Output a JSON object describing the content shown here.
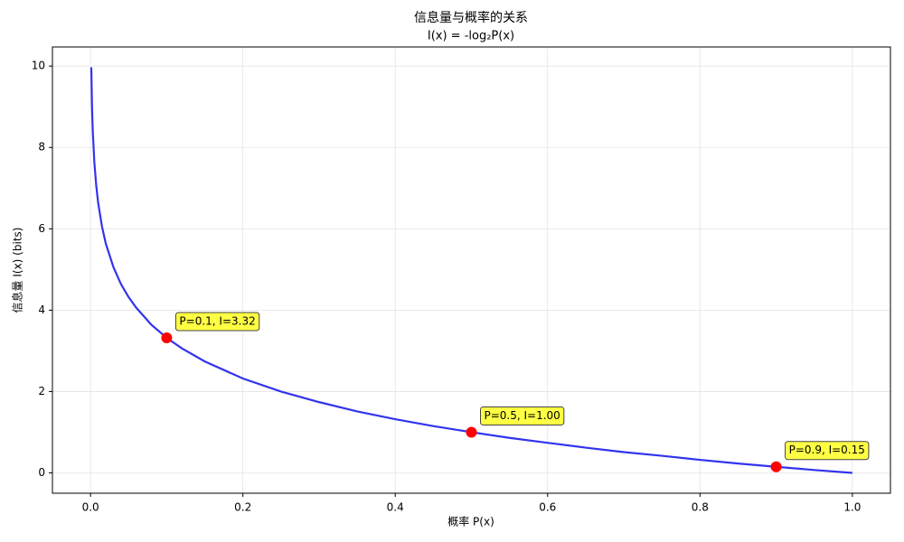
{
  "chart_data": {
    "type": "line",
    "title": "信息量与概率的关系",
    "subtitle": "I(x) = -log₂P(x)",
    "xlabel": "概率 P(x)",
    "ylabel": "信息量 I(x) (bits)",
    "series": [
      {
        "type": "line",
        "color": "#3333ee",
        "x": [
          0.001,
          0.002,
          0.003,
          0.005,
          0.0075,
          0.01,
          0.015,
          0.02,
          0.03,
          0.04,
          0.05,
          0.06,
          0.08,
          0.1,
          0.12,
          0.15,
          0.2,
          0.25,
          0.3,
          0.35,
          0.4,
          0.45,
          0.5,
          0.55,
          0.6,
          0.65,
          0.7,
          0.75,
          0.8,
          0.85,
          0.9,
          0.95,
          1.0
        ],
        "values": [
          9.97,
          8.97,
          8.38,
          7.64,
          7.06,
          6.64,
          6.06,
          5.64,
          5.06,
          4.64,
          4.32,
          4.06,
          3.64,
          3.32,
          3.06,
          2.74,
          2.32,
          2,
          1.74,
          1.51,
          1.32,
          1.15,
          1,
          0.86,
          0.74,
          0.62,
          0.51,
          0.42,
          0.32,
          0.23,
          0.15,
          0.07,
          0
        ]
      },
      {
        "type": "scatter",
        "color": "#ff0000",
        "x": [
          0.1,
          0.5,
          0.9
        ],
        "values": [
          3.32,
          1,
          0.15
        ],
        "value_labels": [
          "P=0.1, I=3.32",
          "P=0.5, I=1.00",
          "P=0.9, I=0.15"
        ],
        "label_color": "#ffff44"
      }
    ],
    "xlim": [
      -0.05,
      1.05
    ],
    "ylim": [
      -0.5,
      10.47
    ],
    "xticks": [
      {
        "value": 0,
        "label": "0.0"
      },
      0.2,
      0.4,
      0.6,
      0.8,
      {
        "value": 1,
        "label": "1.0"
      }
    ],
    "yticks": [
      0,
      2,
      4,
      6,
      8,
      10
    ],
    "grid": true
  }
}
